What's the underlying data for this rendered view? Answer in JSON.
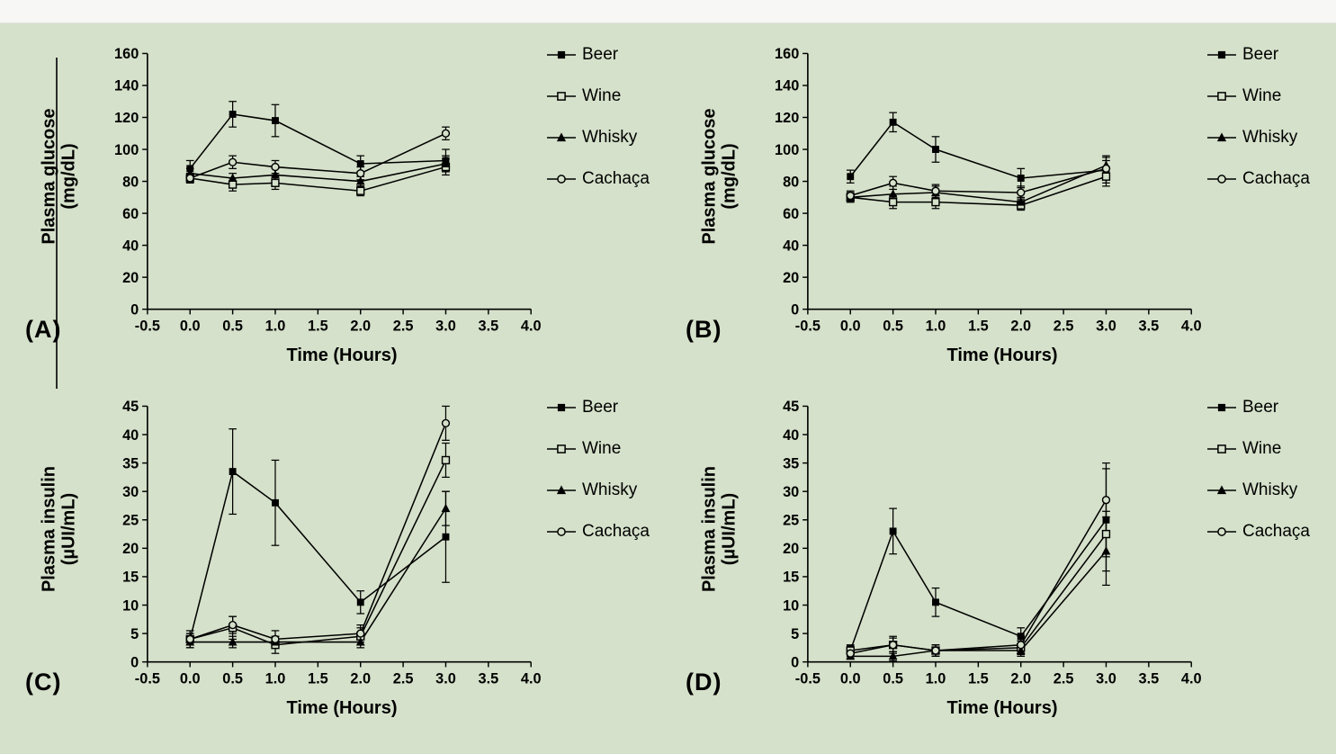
{
  "page": {
    "background_color": "#d5e1ca",
    "top_bar_color": "#f7f7f5",
    "line_color": "#000000"
  },
  "figure": {
    "legend_items": [
      "Beer",
      "Wine",
      "Whisky",
      "Cachaça"
    ],
    "x_axis_title": "Time (Hours)"
  },
  "chart_data": [
    {
      "type": "line",
      "panel_label": "(A)",
      "ylabel_line1": "Plasma glucose",
      "ylabel_line2": "(mg/dL)",
      "xlabel": "Time (Hours)",
      "xlim": [
        -0.5,
        4.0
      ],
      "ylim": [
        0,
        160
      ],
      "xticks": [
        -0.5,
        0.0,
        0.5,
        1.0,
        1.5,
        2.0,
        2.5,
        3.0,
        3.5,
        4.0
      ],
      "yticks": [
        0,
        20,
        40,
        60,
        80,
        100,
        120,
        140,
        160
      ],
      "xtick_decimals": 1,
      "ytick_decimals": 0,
      "x": [
        0.0,
        0.5,
        1.0,
        2.0,
        3.0
      ],
      "series": [
        {
          "name": "Beer",
          "marker": "filled-square",
          "values": [
            88,
            122,
            118,
            91,
            93
          ],
          "errors": [
            5,
            8,
            10,
            5,
            7
          ]
        },
        {
          "name": "Wine",
          "marker": "open-square",
          "values": [
            82,
            78,
            79,
            74,
            89
          ],
          "errors": [
            3,
            4,
            4,
            3,
            5
          ]
        },
        {
          "name": "Whisky",
          "marker": "filled-triangle",
          "values": [
            85,
            82,
            84,
            80,
            91
          ],
          "errors": [
            3,
            3,
            4,
            3,
            5
          ]
        },
        {
          "name": "Cachaça",
          "marker": "open-circle",
          "values": [
            82,
            92,
            89,
            85,
            110
          ],
          "errors": [
            3,
            4,
            4,
            4,
            4
          ]
        }
      ]
    },
    {
      "type": "line",
      "panel_label": "(B)",
      "ylabel_line1": "Plasma glucose",
      "ylabel_line2": "(mg/dL)",
      "xlabel": "Time (Hours)",
      "xlim": [
        -0.5,
        4.0
      ],
      "ylim": [
        0,
        160
      ],
      "xticks": [
        -0.5,
        0.0,
        0.5,
        1.0,
        1.5,
        2.0,
        2.5,
        3.0,
        3.5,
        4.0
      ],
      "yticks": [
        0,
        20,
        40,
        60,
        80,
        100,
        120,
        140,
        160
      ],
      "xtick_decimals": 1,
      "ytick_decimals": 0,
      "x": [
        0.0,
        0.5,
        1.0,
        2.0,
        3.0
      ],
      "series": [
        {
          "name": "Beer",
          "marker": "filled-square",
          "values": [
            83,
            117,
            100,
            82,
            87
          ],
          "errors": [
            4,
            6,
            8,
            6,
            8
          ]
        },
        {
          "name": "Wine",
          "marker": "open-square",
          "values": [
            70,
            67,
            67,
            65,
            83
          ],
          "errors": [
            3,
            4,
            4,
            3,
            6
          ]
        },
        {
          "name": "Whisky",
          "marker": "filled-triangle",
          "values": [
            70,
            72,
            73,
            67,
            90
          ],
          "errors": [
            3,
            5,
            4,
            3,
            6
          ]
        },
        {
          "name": "Cachaça",
          "marker": "open-circle",
          "values": [
            71,
            79,
            74,
            73,
            88
          ],
          "errors": [
            3,
            4,
            4,
            4,
            5
          ]
        }
      ]
    },
    {
      "type": "line",
      "panel_label": "(C)",
      "ylabel_line1": "Plasma insulin",
      "ylabel_line2": "(µUI/mL)",
      "xlabel": "Time (Hours)",
      "xlim": [
        -0.5,
        4.0
      ],
      "ylim": [
        0,
        45
      ],
      "xticks": [
        -0.5,
        0.0,
        0.5,
        1.0,
        1.5,
        2.0,
        2.5,
        3.0,
        3.5,
        4.0
      ],
      "yticks": [
        0,
        5,
        10,
        15,
        20,
        25,
        30,
        35,
        40,
        45
      ],
      "xtick_decimals": 1,
      "ytick_decimals": 0,
      "x": [
        0.0,
        0.5,
        1.0,
        2.0,
        3.0
      ],
      "series": [
        {
          "name": "Beer",
          "marker": "filled-square",
          "values": [
            4,
            33.5,
            28,
            10.5,
            22
          ],
          "errors": [
            1.5,
            7.5,
            7.5,
            2,
            8
          ]
        },
        {
          "name": "Wine",
          "marker": "open-square",
          "values": [
            4,
            6,
            3,
            4.5,
            35.5
          ],
          "errors": [
            1,
            2,
            1.5,
            1.5,
            3
          ]
        },
        {
          "name": "Whisky",
          "marker": "filled-triangle",
          "values": [
            3.5,
            3.5,
            3.5,
            3.5,
            27
          ],
          "errors": [
            1,
            1,
            1,
            1,
            3
          ]
        },
        {
          "name": "Cachaça",
          "marker": "open-circle",
          "values": [
            4,
            6.5,
            4,
            5,
            42
          ],
          "errors": [
            1,
            1.5,
            1.5,
            1.5,
            3
          ]
        }
      ]
    },
    {
      "type": "line",
      "panel_label": "(D)",
      "ylabel_line1": "Plasma insulin",
      "ylabel_line2": "(µUI/mL)",
      "xlabel": "Time (Hours)",
      "xlim": [
        -0.5,
        4.0
      ],
      "ylim": [
        0,
        45
      ],
      "xticks": [
        -0.5,
        0.0,
        0.5,
        1.0,
        1.5,
        2.0,
        2.5,
        3.0,
        3.5,
        4.0
      ],
      "yticks": [
        0,
        5,
        10,
        15,
        20,
        25,
        30,
        35,
        40,
        45
      ],
      "xtick_decimals": 1,
      "ytick_decimals": 0,
      "x": [
        0.0,
        0.5,
        1.0,
        2.0,
        3.0
      ],
      "series": [
        {
          "name": "Beer",
          "marker": "filled-square",
          "values": [
            2,
            23,
            10.5,
            4.5,
            25
          ],
          "errors": [
            1,
            4,
            2.5,
            1.5,
            9
          ]
        },
        {
          "name": "Wine",
          "marker": "open-square",
          "values": [
            2,
            3,
            2,
            2.5,
            22.5
          ],
          "errors": [
            0.8,
            1.5,
            1,
            1.2,
            4
          ]
        },
        {
          "name": "Whisky",
          "marker": "filled-triangle",
          "values": [
            1,
            1,
            2,
            2,
            19.5
          ],
          "errors": [
            0.5,
            0.8,
            1,
            1,
            6
          ]
        },
        {
          "name": "Cachaça",
          "marker": "open-circle",
          "values": [
            1.5,
            3,
            2,
            3,
            28.5
          ],
          "errors": [
            0.8,
            1.2,
            1,
            1.5,
            6.5
          ]
        }
      ]
    }
  ]
}
